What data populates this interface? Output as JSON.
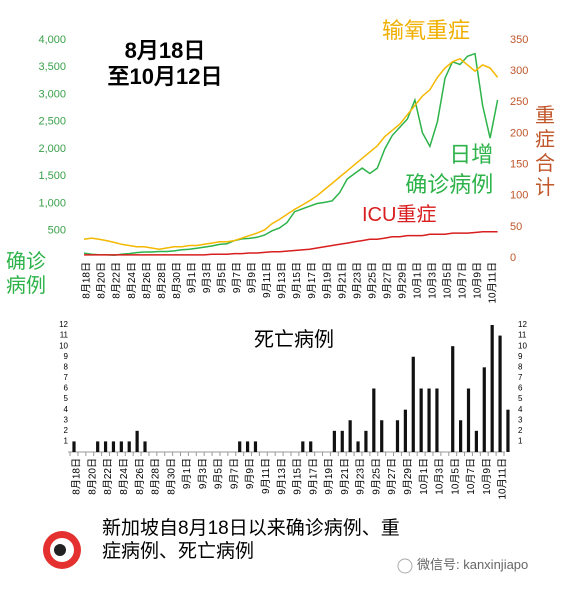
{
  "chart_data": [
    {
      "type": "line",
      "title": [
        "8月18日",
        "至10月12日"
      ],
      "categories": [
        "8月18日",
        null,
        "8月20日",
        null,
        "8月22日",
        null,
        "8月24日",
        null,
        "8月26日",
        null,
        "8月28日",
        null,
        "8月30日",
        null,
        "9月1日",
        null,
        "9月3日",
        null,
        "9月5日",
        null,
        "9月7日",
        null,
        "9月9日",
        null,
        "9月11日",
        null,
        "9月13日",
        null,
        "9月15日",
        null,
        "9月17日",
        null,
        "9月19日",
        null,
        "9月21日",
        null,
        "9月23日",
        null,
        "9月25日",
        null,
        "9月27日",
        null,
        "9月29日",
        null,
        "10月1日",
        null,
        "10月3日",
        null,
        "10月5日",
        null,
        "10月7日",
        null,
        "10月9日",
        null,
        "10月11日",
        null
      ],
      "ylabel": "确诊病例",
      "y2label": "重症合计",
      "ylim": [
        0,
        4000
      ],
      "yticks": [
        {
          "value": 4000,
          "label": "4,000"
        },
        {
          "value": 3500,
          "label": "3,500"
        },
        {
          "value": 3000,
          "label": "3,000"
        },
        {
          "value": 2500,
          "label": "2,500"
        },
        {
          "value": 2000,
          "label": "2,000"
        },
        {
          "value": 1500,
          "label": "1,500"
        },
        {
          "value": 1000,
          "label": "1,000"
        },
        500
      ],
      "y2lim": [
        0,
        350
      ],
      "y2ticks": [
        350,
        300,
        250,
        200,
        150,
        100,
        50,
        0
      ],
      "series": [
        {
          "name": "日增确诊病例",
          "color": "#2db34a",
          "values": [
            90,
            70,
            60,
            60,
            50,
            70,
            80,
            100,
            110,
            110,
            120,
            120,
            130,
            150,
            160,
            180,
            200,
            220,
            250,
            260,
            320,
            350,
            360,
            380,
            420,
            500,
            550,
            650,
            850,
            900,
            950,
            1000,
            1020,
            1050,
            1200,
            1450,
            1550,
            1650,
            1550,
            1650,
            2000,
            2250,
            2400,
            2550,
            2900,
            2300,
            2050,
            2500,
            3300,
            3600,
            3550,
            3700,
            3750,
            2800,
            2200,
            2900
          ]
        },
        {
          "name": "输氧重症",
          "color": "#f5b800",
          "axis": "y2",
          "values": [
            30,
            32,
            30,
            28,
            25,
            22,
            20,
            18,
            18,
            16,
            14,
            16,
            18,
            18,
            20,
            20,
            22,
            24,
            26,
            26,
            28,
            32,
            36,
            40,
            45,
            55,
            62,
            70,
            78,
            85,
            92,
            100,
            110,
            120,
            130,
            140,
            150,
            160,
            170,
            180,
            195,
            205,
            215,
            230,
            245,
            260,
            270,
            290,
            305,
            315,
            320,
            310,
            300,
            310,
            305,
            290
          ]
        },
        {
          "name": "ICU重症",
          "color": "#d81e1e",
          "axis": "y2",
          "values": [
            5,
            5,
            5,
            5,
            5,
            5,
            5,
            5,
            5,
            5,
            5,
            5,
            5,
            5,
            5,
            5,
            5,
            6,
            6,
            6,
            7,
            7,
            8,
            8,
            9,
            10,
            10,
            11,
            12,
            13,
            14,
            16,
            18,
            20,
            22,
            24,
            26,
            28,
            30,
            30,
            32,
            34,
            34,
            36,
            36,
            36,
            38,
            38,
            38,
            40,
            40,
            40,
            41,
            42,
            42,
            42
          ]
        }
      ]
    },
    {
      "type": "bar",
      "title": "死亡病例",
      "categories": [
        "8月18日",
        null,
        "8月20日",
        null,
        "8月22日",
        null,
        "8月24日",
        null,
        "8月26日",
        null,
        "8月28日",
        null,
        "8月30日",
        null,
        "9月1日",
        null,
        "9月3日",
        null,
        "9月5日",
        null,
        "9月7日",
        null,
        "9月9日",
        null,
        "9月11日",
        null,
        "9月13日",
        null,
        "9月15日",
        null,
        "9月17日",
        null,
        "9月19日",
        null,
        "9月21日",
        null,
        "9月23日",
        null,
        "9月25日",
        null,
        "9月27日",
        null,
        "9月29日",
        null,
        "10月1日",
        null,
        "10月3日",
        null,
        "10月5日",
        null,
        "10月7日",
        null,
        "10月9日",
        null,
        "10月11日",
        null
      ],
      "color": "#111111",
      "values": [
        1,
        0,
        0,
        1,
        1,
        1,
        1,
        1,
        2,
        1,
        0,
        0,
        0,
        0,
        0,
        0,
        0,
        0,
        0,
        0,
        0,
        1,
        1,
        1,
        0,
        0,
        0,
        0,
        0,
        1,
        1,
        0,
        0,
        2,
        2,
        3,
        1,
        2,
        6,
        3,
        0,
        3,
        4,
        9,
        6,
        6,
        6,
        0,
        10,
        3,
        6,
        2,
        8,
        12,
        11,
        4
      ],
      "ylim": [
        0,
        12
      ],
      "yticks": [
        1,
        2,
        3,
        4,
        5,
        6,
        7,
        8,
        9,
        10,
        11,
        12
      ]
    }
  ],
  "footer": "新加坡自8月18日以来确诊病例、重症病例、死亡病例",
  "watermark": "微信号: kanxinjiapo"
}
